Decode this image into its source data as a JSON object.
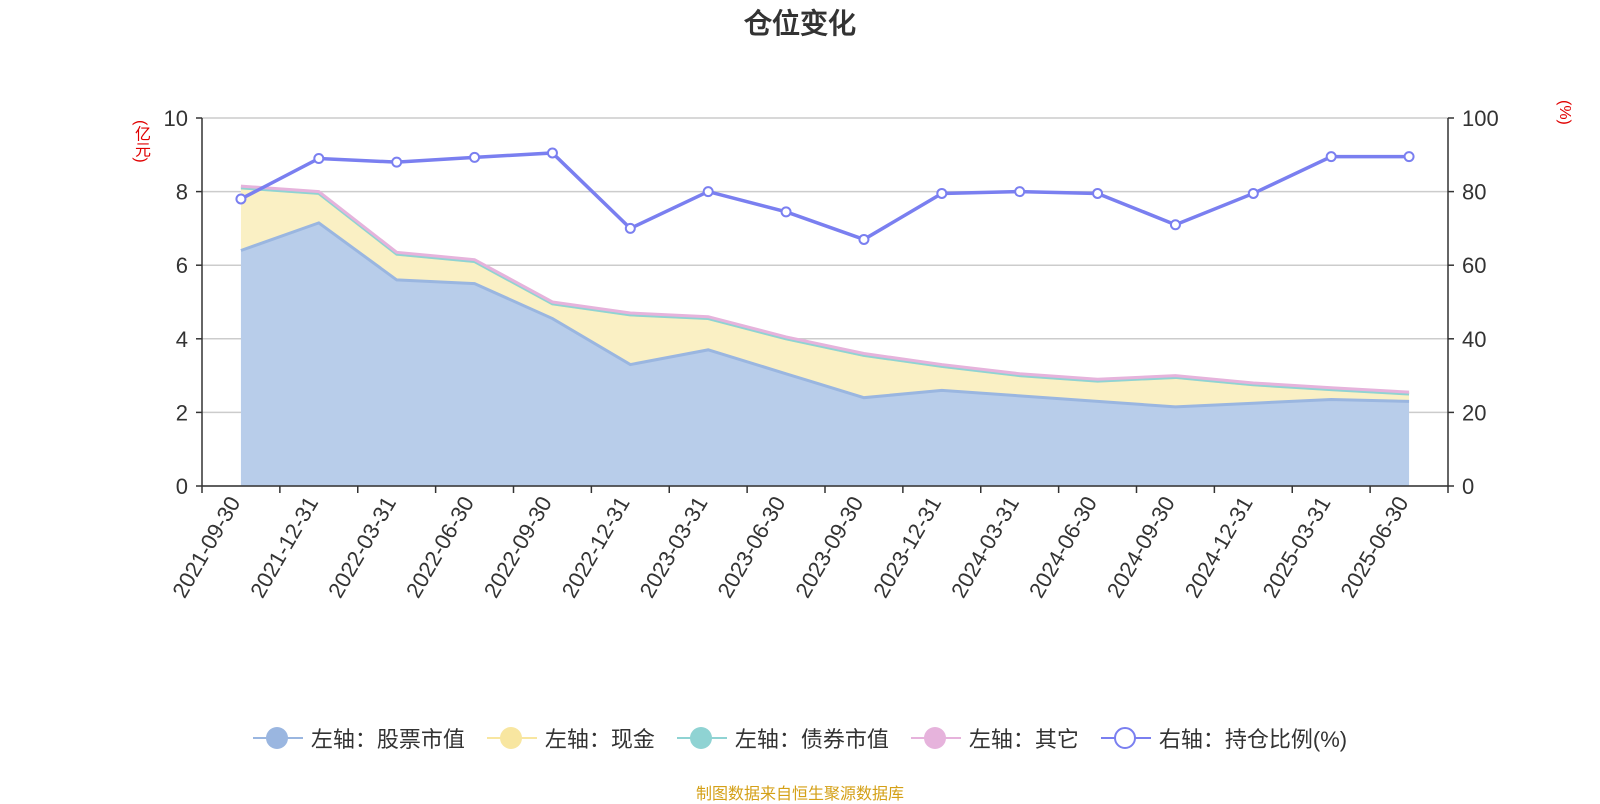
{
  "title": "仓位变化",
  "left_unit": "(亿元)",
  "right_unit": "(%)",
  "footer": "制图数据来自恒生聚源数据库",
  "colors": {
    "stock": "#9ab6e0",
    "cash": "#f8e6a0",
    "bond": "#8fd3d3",
    "other": "#e6b3dc",
    "ratio": "#7a7ff0"
  },
  "legend": [
    {
      "label": "左轴：股票市值",
      "key": "stock",
      "style": "filled"
    },
    {
      "label": "左轴：现金",
      "key": "cash",
      "style": "filled"
    },
    {
      "label": "左轴：债券市值",
      "key": "bond",
      "style": "filled"
    },
    {
      "label": "左轴：其它",
      "key": "other",
      "style": "filled"
    },
    {
      "label": "右轴：持仓比例(%)",
      "key": "ratio",
      "style": "hollow"
    }
  ],
  "chart_data": {
    "type": "area",
    "title": "仓位变化",
    "categories": [
      "2021-09-30",
      "2021-12-31",
      "2022-03-31",
      "2022-06-30",
      "2022-09-30",
      "2022-12-31",
      "2023-03-31",
      "2023-06-30",
      "2023-09-30",
      "2023-12-31",
      "2024-03-31",
      "2024-06-30",
      "2024-09-30",
      "2024-12-31",
      "2025-03-31",
      "2025-06-30"
    ],
    "left_axis": {
      "min": 0,
      "max": 10,
      "ticks": [
        0,
        2,
        4,
        6,
        8,
        10
      ]
    },
    "right_axis": {
      "min": 0,
      "max": 100,
      "ticks": [
        0,
        20,
        40,
        60,
        80,
        100
      ]
    },
    "series": [
      {
        "name": "左轴：股票市值",
        "axis": "left",
        "stacked": true,
        "values": [
          6.4,
          7.15,
          5.6,
          5.5,
          4.55,
          3.3,
          3.7,
          3.05,
          2.4,
          2.6,
          2.45,
          2.3,
          2.15,
          2.25,
          2.35,
          2.3
        ]
      },
      {
        "name": "左轴：现金",
        "axis": "left",
        "stacked": true,
        "values": [
          1.7,
          0.8,
          0.7,
          0.6,
          0.4,
          1.35,
          0.85,
          0.95,
          1.15,
          0.65,
          0.55,
          0.55,
          0.8,
          0.5,
          0.27,
          0.2
        ]
      },
      {
        "name": "左轴：债券市值",
        "axis": "left",
        "stacked": true,
        "values": [
          0,
          0,
          0,
          0,
          0,
          0,
          0,
          0,
          0,
          0,
          0,
          0,
          0,
          0,
          0,
          0
        ]
      },
      {
        "name": "左轴：其它",
        "axis": "left",
        "stacked": true,
        "values": [
          0.05,
          0.05,
          0.05,
          0.05,
          0.05,
          0.05,
          0.05,
          0.05,
          0.05,
          0.05,
          0.05,
          0.05,
          0.05,
          0.05,
          0.05,
          0.05
        ]
      },
      {
        "name": "右轴：持仓比例(%)",
        "axis": "right",
        "type": "line",
        "values": [
          78,
          89,
          88,
          89.3,
          90.5,
          70,
          80,
          74.5,
          67,
          79.5,
          80,
          79.5,
          71,
          79.5,
          89.5,
          89.5
        ]
      }
    ]
  }
}
